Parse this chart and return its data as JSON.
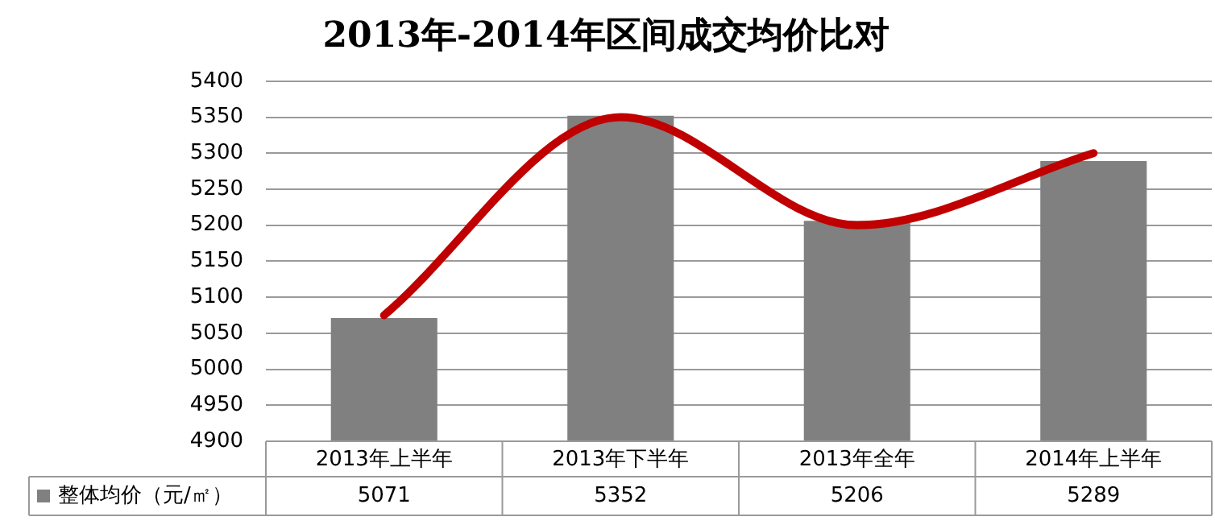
{
  "chart_data": {
    "type": "bar",
    "title": "2013年-2014年区间成交均价比对",
    "categories": [
      "2013年上半年",
      "2013年下半年",
      "2013年全年",
      "2014年上半年"
    ],
    "series": [
      {
        "name": "整体均价（元/㎡）",
        "color": "#808080",
        "values": [
          5071,
          5352,
          5206,
          5289
        ],
        "value_labels": [
          "5071",
          "5352",
          "5206",
          "5289"
        ]
      },
      {
        "type": "line",
        "color": "#c00000",
        "values": [
          5075,
          5350,
          5200,
          5300
        ]
      }
    ],
    "ylim": [
      4900,
      5400
    ],
    "yticks": [
      4900,
      4950,
      5000,
      5050,
      5100,
      5150,
      5200,
      5250,
      5300,
      5350,
      5400
    ],
    "grid": "y",
    "legend": "bottom",
    "marker": "none",
    "line_style": "solid"
  }
}
